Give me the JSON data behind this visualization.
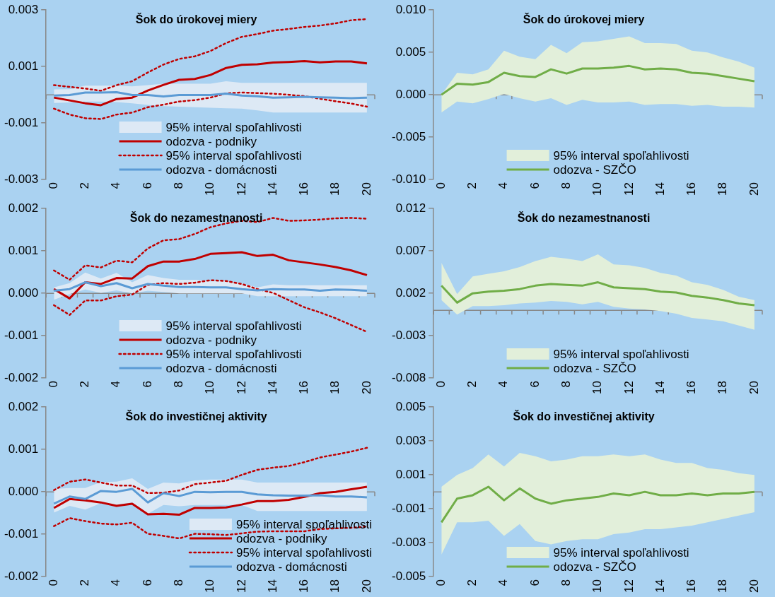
{
  "chart_data": [
    {
      "type": "line",
      "title": "Šok do úrokovej miery",
      "categories": [
        "0",
        null,
        "2",
        null,
        "4",
        null,
        "6",
        null,
        "8",
        null,
        "10",
        null,
        "12",
        null,
        "14",
        null,
        "16",
        null,
        "18",
        null,
        "20"
      ],
      "ylim": [
        -0.003,
        0.003
      ],
      "yticks": [
        {
          "value": -0.003,
          "label": "-0.003"
        },
        {
          "value": -0.001,
          "label": "-0.001"
        },
        {
          "value": 0.001,
          "label": "0.001"
        },
        {
          "value": 0.003,
          "label": "0.003"
        }
      ],
      "legend": "bottom",
      "series": [
        {
          "name": "95% interval spoľahlivosti",
          "color": "#dde9f5",
          "values": [
            null,
            null,
            null,
            null,
            null,
            null,
            null,
            null,
            null,
            null,
            null,
            null,
            null,
            null,
            null,
            null,
            null,
            null,
            null,
            null,
            null
          ],
          "lower": [
            -0.00029,
            -0.00027,
            -0.00024,
            -0.00024,
            -0.00026,
            -0.0003,
            -0.00036,
            -0.0004,
            -0.00042,
            -0.00044,
            -0.00046,
            -0.00048,
            -0.00049,
            -0.00055,
            -0.00063,
            -0.00063,
            -0.00063,
            -0.00063,
            -0.00063,
            -0.00063,
            -0.00063
          ],
          "upper": [
            0.00019,
            0.0002,
            0.00032,
            0.00032,
            0.00032,
            0.0003,
            0.00034,
            0.00039,
            0.00039,
            0.00039,
            0.00039,
            0.00048,
            0.00042,
            0.00042,
            0.00042,
            0.00042,
            0.00042,
            0.00042,
            0.00042,
            0.00042,
            0.00042
          ]
        },
        {
          "name": "odozva - podniky",
          "color": "#c00000",
          "values": [
            -0.0001,
            -0.0002,
            -0.0003,
            -0.00037,
            -0.00015,
            -0.0001,
            0.00015,
            0.00035,
            0.00053,
            0.00056,
            0.0007,
            0.00095,
            0.00106,
            0.00108,
            0.00114,
            0.00116,
            0.00119,
            0.00115,
            0.00118,
            0.00118,
            0.00111
          ]
        },
        {
          "name": "95% interval spoľahlivosti",
          "color": "#c00000",
          "line_style": "dotted",
          "values": [
            0.00034,
            0.00028,
            0.00022,
            0.00014,
            0.00034,
            0.00048,
            0.00079,
            0.00107,
            0.00127,
            0.00136,
            0.00155,
            0.00183,
            0.00205,
            0.00215,
            0.00227,
            0.00233,
            0.0024,
            0.00245,
            0.00253,
            0.00264,
            0.00268
          ]
        },
        {
          "color": "#c00000",
          "line_style": "dotted",
          "values": [
            -0.00049,
            -0.0007,
            -0.00083,
            -0.00086,
            -0.0007,
            -0.00063,
            -0.00044,
            -0.00035,
            -0.00024,
            -0.00019,
            -0.0001,
            5e-05,
            8e-05,
            6e-05,
            4e-05,
            0,
            -5e-05,
            -0.00014,
            -0.00023,
            -0.00031,
            -0.00042
          ]
        },
        {
          "name": "odozva - domácnosti",
          "color": "#5b9bd5",
          "values": [
            -3e-05,
            -1e-05,
            8e-05,
            8e-05,
            9e-05,
            -1e-05,
            -1e-05,
            -6e-05,
            -1e-05,
            -1e-05,
            -1e-05,
            4e-05,
            -3e-05,
            -5e-05,
            -0.0001,
            -9e-05,
            -7e-05,
            -9e-05,
            -0.0001,
            -0.00012,
            -0.0001
          ]
        }
      ]
    },
    {
      "type": "line",
      "title": "Šok do úrokovej miery",
      "categories": [
        "0",
        null,
        "2",
        null,
        "4",
        null,
        "6",
        null,
        "8",
        null,
        "10",
        null,
        "12",
        null,
        "14",
        null,
        "16",
        null,
        "18",
        null,
        "20"
      ],
      "ylim": [
        -0.01,
        0.01
      ],
      "yticks": [
        {
          "value": -0.01,
          "label": "-0.010"
        },
        {
          "value": -0.005,
          "label": "-0.005"
        },
        {
          "value": 0,
          "label": "0.000"
        },
        {
          "value": 0.005,
          "label": "0.005"
        },
        {
          "value": 0.01,
          "label": "0.010"
        }
      ],
      "legend": "bottom",
      "series": [
        {
          "name": "95% interval spoľahlivosti",
          "color": "#e2efda",
          "values": [
            null,
            null,
            null,
            null,
            null,
            null,
            null,
            null,
            null,
            null,
            null,
            null,
            null,
            null,
            null,
            null,
            null,
            null,
            null,
            null,
            null
          ],
          "lower": [
            -0.0021,
            -0.0008,
            -0.001,
            -0.0005,
            0.0001,
            -0.0004,
            -0.0008,
            -0.0004,
            -0.0012,
            -0.0006,
            -0.0009,
            -0.0009,
            -0.0008,
            -0.0012,
            -0.0011,
            -0.0011,
            -0.0013,
            -0.0012,
            -0.0014,
            -0.0014,
            -0.0015
          ],
          "upper": [
            0,
            0.0026,
            0.0024,
            0.003,
            0.0052,
            0.0045,
            0.0042,
            0.0059,
            0.0049,
            0.0062,
            0.0063,
            0.0066,
            0.0069,
            0.0061,
            0.0061,
            0.006,
            0.0052,
            0.005,
            0.0044,
            0.0039,
            0.0032
          ]
        },
        {
          "name": "odozva - SZČO",
          "color": "#70ad47",
          "values": [
            0,
            0.0013,
            0.0012,
            0.0015,
            0.0026,
            0.0022,
            0.0021,
            0.003,
            0.0025,
            0.0031,
            0.0031,
            0.0032,
            0.0034,
            0.003,
            0.0031,
            0.003,
            0.0026,
            0.0025,
            0.0022,
            0.0019,
            0.0016
          ]
        }
      ]
    },
    {
      "type": "line",
      "title": "Šok do nezamestnanosti",
      "categories": [
        "0",
        null,
        "2",
        null,
        "4",
        null,
        "6",
        null,
        "8",
        null,
        "10",
        null,
        "12",
        null,
        "14",
        null,
        "16",
        null,
        "18",
        null,
        "20"
      ],
      "ylim": [
        -0.002,
        0.002
      ],
      "yticks": [
        {
          "value": -0.002,
          "label": "-0.002"
        },
        {
          "value": -0.001,
          "label": "-0.001"
        },
        {
          "value": 0,
          "label": "0.000"
        },
        {
          "value": 0.001,
          "label": "0.001"
        },
        {
          "value": 0.002,
          "label": "0.002"
        }
      ],
      "legend": "bottom",
      "series": [
        {
          "name": "95% interval spoľahlivosti",
          "color": "#dde9f5",
          "values": [
            null,
            null,
            null,
            null,
            null,
            null,
            null,
            null,
            null,
            null,
            null,
            null,
            null,
            null,
            null,
            null,
            null,
            null,
            null,
            null,
            null
          ],
          "lower": [
            -0.00015,
            -2e-05,
            9e-05,
            1e-05,
            7e-05,
            0,
            6e-05,
            3e-05,
            0,
            0,
            0,
            0,
            0,
            -7e-05,
            -7e-05,
            -7e-05,
            -7e-05,
            -7e-05,
            -7e-05,
            -7e-05,
            -7e-05
          ],
          "upper": [
            0.00014,
            0.00024,
            0.00049,
            0.00035,
            0.00048,
            0.00026,
            0.00043,
            0.00036,
            0.00032,
            0.00032,
            0.00028,
            0.00029,
            0.00023,
            0.00014,
            0.00021,
            0.00019,
            0.00019,
            0.00019,
            0.00019,
            0.00019,
            0.00019
          ]
        },
        {
          "name": "odozva - podniky",
          "color": "#c00000",
          "values": [
            0.0001,
            -0.00012,
            0.00026,
            0.00022,
            0.00036,
            0.00035,
            0.00064,
            0.00075,
            0.00075,
            0.00081,
            0.00093,
            0.00095,
            0.00097,
            0.00088,
            0.00091,
            0.00078,
            0.00073,
            0.00068,
            0.00062,
            0.00054,
            0.00043
          ]
        },
        {
          "name": "95% interval spoľahlivosti",
          "color": "#c00000",
          "line_style": "dotted",
          "values": [
            0.00054,
            0.00032,
            0.00066,
            0.00061,
            0.00077,
            0.00073,
            0.00106,
            0.00125,
            0.00128,
            0.0014,
            0.00156,
            0.00165,
            0.00171,
            0.00168,
            0.00178,
            0.00171,
            0.00172,
            0.00174,
            0.00177,
            0.00178,
            0.00176
          ]
        },
        {
          "color": "#c00000",
          "line_style": "dotted",
          "values": [
            -0.00028,
            -0.00051,
            -0.00017,
            -0.00017,
            -7e-05,
            -3e-05,
            0.0002,
            0.00024,
            0.00022,
            0.00025,
            0.00031,
            0.00029,
            0.00022,
            0.0001,
            1e-05,
            -0.00016,
            -0.00033,
            -0.00045,
            -0.00059,
            -0.00075,
            -0.00091
          ]
        },
        {
          "name": "odozva - domácnosti",
          "color": "#5b9bd5",
          "values": [
            6e-05,
            0.0001,
            0.00026,
            0.00017,
            0.00024,
            0.00012,
            0.00022,
            0.00018,
            0.00015,
            0.00015,
            0.00014,
            0.00014,
            0.0001,
            7e-05,
            0.0001,
            9e-05,
            9e-05,
            6e-05,
            9e-05,
            8e-05,
            6e-05
          ]
        }
      ]
    },
    {
      "type": "line",
      "title": "Šok do nezamestnanosti",
      "categories": [
        "0",
        null,
        "2",
        null,
        "4",
        null,
        "6",
        null,
        "8",
        null,
        "10",
        null,
        "12",
        null,
        "14",
        null,
        "16",
        null,
        "18",
        null,
        "20"
      ],
      "ylim": [
        -0.008,
        0.012
      ],
      "yticks": [
        {
          "value": -0.008,
          "label": "-0.008"
        },
        {
          "value": -0.003,
          "label": "-0.003"
        },
        {
          "value": 0.002,
          "label": "0.002"
        },
        {
          "value": 0.007,
          "label": "0.007"
        },
        {
          "value": 0.012,
          "label": "0.012"
        }
      ],
      "legend": "bottom",
      "series": [
        {
          "name": "95% interval spoľahlivosti",
          "color": "#e2efda",
          "values": [
            null,
            null,
            null,
            null,
            null,
            null,
            null,
            null,
            null,
            null,
            null,
            null,
            null,
            null,
            null,
            null,
            null,
            null,
            null,
            null,
            null
          ],
          "lower": [
            0.0012,
            -0.0005,
            0.0005,
            0.0005,
            0.0006,
            0.0008,
            0.0009,
            0.0011,
            0.001,
            0.0007,
            0.001,
            0.0004,
            0.0002,
            0.0001,
            -0.0001,
            -0.0004,
            -0.0009,
            -0.0011,
            -0.0013,
            -0.0018,
            -0.0023
          ],
          "upper": [
            0.0056,
            0.0019,
            0.004,
            0.0043,
            0.0046,
            0.0051,
            0.0058,
            0.0063,
            0.0061,
            0.0058,
            0.0066,
            0.0054,
            0.0053,
            0.005,
            0.0044,
            0.0041,
            0.0033,
            0.003,
            0.0024,
            0.0016,
            0.0012
          ]
        },
        {
          "name": "odozva - SZČO",
          "color": "#70ad47",
          "values": [
            0.0029,
            0.0009,
            0.002,
            0.0022,
            0.0023,
            0.0025,
            0.0029,
            0.0031,
            0.003,
            0.0029,
            0.0033,
            0.0027,
            0.0026,
            0.0025,
            0.0022,
            0.0021,
            0.0017,
            0.0015,
            0.0012,
            0.0008,
            0.0006
          ]
        }
      ]
    },
    {
      "type": "line",
      "title": "Šok do investičnej aktivity",
      "categories": [
        "0",
        null,
        "2",
        null,
        "4",
        null,
        "6",
        null,
        "8",
        null,
        "10",
        null,
        "12",
        null,
        "14",
        null,
        "16",
        null,
        "18",
        null,
        "20"
      ],
      "ylim": [
        -0.002,
        0.002
      ],
      "yticks": [
        {
          "value": -0.002,
          "label": "-0.002"
        },
        {
          "value": -0.001,
          "label": "-0.001"
        },
        {
          "value": 0,
          "label": "0.000"
        },
        {
          "value": 0.001,
          "label": "0.001"
        },
        {
          "value": 0.002,
          "label": "0.002"
        }
      ],
      "legend": "bottom right",
      "series": [
        {
          "name": "95% interval spoľahlivosti",
          "color": "#dde9f5",
          "values": [
            null,
            null,
            null,
            null,
            null,
            null,
            null,
            null,
            null,
            null,
            null,
            null,
            null,
            null,
            null,
            null,
            null,
            null,
            null,
            null,
            null
          ],
          "lower": [
            -0.00049,
            -0.00033,
            -0.00042,
            -0.00027,
            -0.0003,
            -0.00025,
            -0.00052,
            -0.00031,
            -0.00034,
            -0.00031,
            -0.00031,
            -0.00031,
            -0.00031,
            -0.00045,
            -0.00045,
            -0.00045,
            -0.00045,
            -0.00045,
            -0.00045,
            -0.00045,
            -0.00045
          ],
          "upper": [
            7e-05,
            9e-05,
            9e-05,
            0.00023,
            0.00024,
            0.00032,
            7e-05,
            0.00022,
            0.0002,
            0.00027,
            0.00029,
            0.00029,
            0.00029,
            0.00022,
            0.00022,
            0.00022,
            0.00022,
            0.00022,
            0.00022,
            0.00022,
            0.00022
          ]
        },
        {
          "name": "odozva - podniky",
          "color": "#c00000",
          "values": [
            -0.00038,
            -0.00017,
            -0.0002,
            -0.00025,
            -0.00033,
            -0.00028,
            -0.00053,
            -0.00052,
            -0.00054,
            -0.00038,
            -0.00038,
            -0.00037,
            -0.0003,
            -0.00022,
            -0.00022,
            -0.00019,
            -0.00012,
            -3e-05,
            0,
            6e-05,
            0.00012
          ]
        },
        {
          "name": "95% interval spoľahlivosti",
          "color": "#c00000",
          "line_style": "dotted",
          "values": [
            4e-05,
            0.00024,
            0.00029,
            0.00022,
            0.00015,
            0.00015,
            -3e-05,
            -2e-05,
            3e-05,
            0.00018,
            0.00022,
            0.00026,
            0.0004,
            0.00052,
            0.00057,
            0.00061,
            0.0007,
            0.00081,
            0.00088,
            0.00095,
            0.00104
          ]
        },
        {
          "color": "#c00000",
          "line_style": "dotted",
          "values": [
            -0.00081,
            -0.00062,
            -0.00069,
            -0.00075,
            -0.00077,
            -0.00073,
            -0.00099,
            -0.00104,
            -0.0011,
            -0.00099,
            -0.001,
            -0.00102,
            -0.00098,
            -0.00094,
            -0.00093,
            -0.00093,
            -0.00093,
            -0.00088,
            -0.00086,
            -0.00085,
            -0.00082
          ]
        },
        {
          "name": "odozva - domácnosti",
          "color": "#5b9bd5",
          "values": [
            -0.00028,
            -0.00011,
            -0.00017,
            2e-05,
            0,
            7e-05,
            -0.00025,
            -3e-05,
            -0.0001,
            0,
            -1e-05,
            0,
            0,
            -6e-05,
            -8e-05,
            -9e-05,
            -9e-05,
            -8e-05,
            -0.00011,
            -0.00011,
            -0.00013
          ]
        }
      ]
    },
    {
      "type": "line",
      "title": "Šok do investičnej aktivity",
      "categories": [
        "0",
        null,
        "2",
        null,
        "4",
        null,
        "6",
        null,
        "8",
        null,
        "10",
        null,
        "12",
        null,
        "14",
        null,
        "16",
        null,
        "18",
        null,
        "20"
      ],
      "ylim": [
        -0.005,
        0.005
      ],
      "yticks": [
        {
          "value": -0.005,
          "label": "-0.005"
        },
        {
          "value": -0.003,
          "label": "-0.003"
        },
        {
          "value": -0.001,
          "label": "-0.001"
        },
        {
          "value": 0.001,
          "label": "0.001"
        },
        {
          "value": 0.003,
          "label": "0.003"
        },
        {
          "value": 0.005,
          "label": "0.005"
        }
      ],
      "legend": "bottom",
      "series": [
        {
          "name": "95% interval spoľahlivosti",
          "color": "#e2efda",
          "values": [
            null,
            null,
            null,
            null,
            null,
            null,
            null,
            null,
            null,
            null,
            null,
            null,
            null,
            null,
            null,
            null,
            null,
            null,
            null,
            null,
            null
          ],
          "lower": [
            -0.0037,
            -0.0018,
            -0.0018,
            -0.0017,
            -0.0026,
            -0.0019,
            -0.0029,
            -0.0031,
            -0.0029,
            -0.0028,
            -0.0028,
            -0.0025,
            -0.0024,
            -0.0022,
            -0.0022,
            -0.0021,
            -0.002,
            -0.0018,
            -0.0016,
            -0.0014,
            -0.0012
          ],
          "upper": [
            0.0003,
            0.001,
            0.0014,
            0.0022,
            0.0015,
            0.0023,
            0.0021,
            0.0018,
            0.0019,
            0.0021,
            0.0021,
            0.0022,
            0.0021,
            0.0022,
            0.0019,
            0.0017,
            0.0017,
            0.0014,
            0.0013,
            0.0011,
            0.001
          ]
        },
        {
          "name": "odozva - SZČO",
          "color": "#70ad47",
          "values": [
            -0.0018,
            -0.0004,
            -0.0002,
            0.0003,
            -0.0005,
            0.0002,
            -0.0004,
            -0.0007,
            -0.0005,
            -0.0004,
            -0.0003,
            -0.0001,
            -0.0002,
            0,
            -0.0002,
            -0.0002,
            -0.0001,
            -0.0002,
            -0.0001,
            -0.0001,
            0
          ]
        }
      ]
    }
  ]
}
